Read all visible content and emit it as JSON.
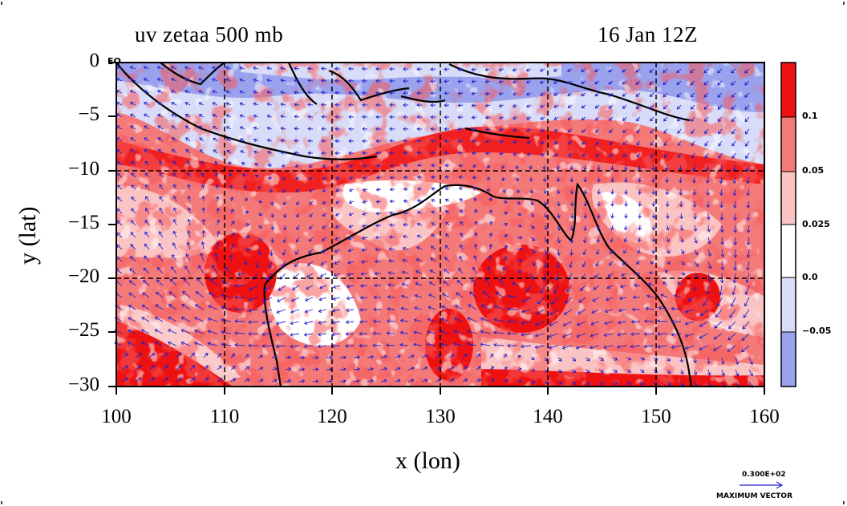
{
  "title_left": "uv zetaa 500 mb",
  "title_right": "16 Jan 12Z",
  "x_axis_label": "x (lon)",
  "y_axis_label": "y (lat)",
  "equator_label": "EQ",
  "x_ticks": [
    "100",
    "110",
    "120",
    "130",
    "140",
    "150",
    "160"
  ],
  "y_ticks": [
    "0",
    "−5",
    "−10",
    "−15",
    "−20",
    "−25",
    "−30"
  ],
  "colorbar": {
    "labels": [
      "0.1",
      "0.05",
      "0.025",
      "0.0",
      "−0.05"
    ],
    "colors": [
      "#ee1111",
      "#f47a7a",
      "#fbc4c4",
      "#ffffff",
      "#d8dcf8",
      "#9aa2ee"
    ]
  },
  "max_vector": {
    "value": "0.300E+02",
    "label": "MAXIMUM VECTOR"
  },
  "colors": {
    "vector": "#2222cc",
    "coast": "#000000",
    "grid": "#000000"
  }
}
